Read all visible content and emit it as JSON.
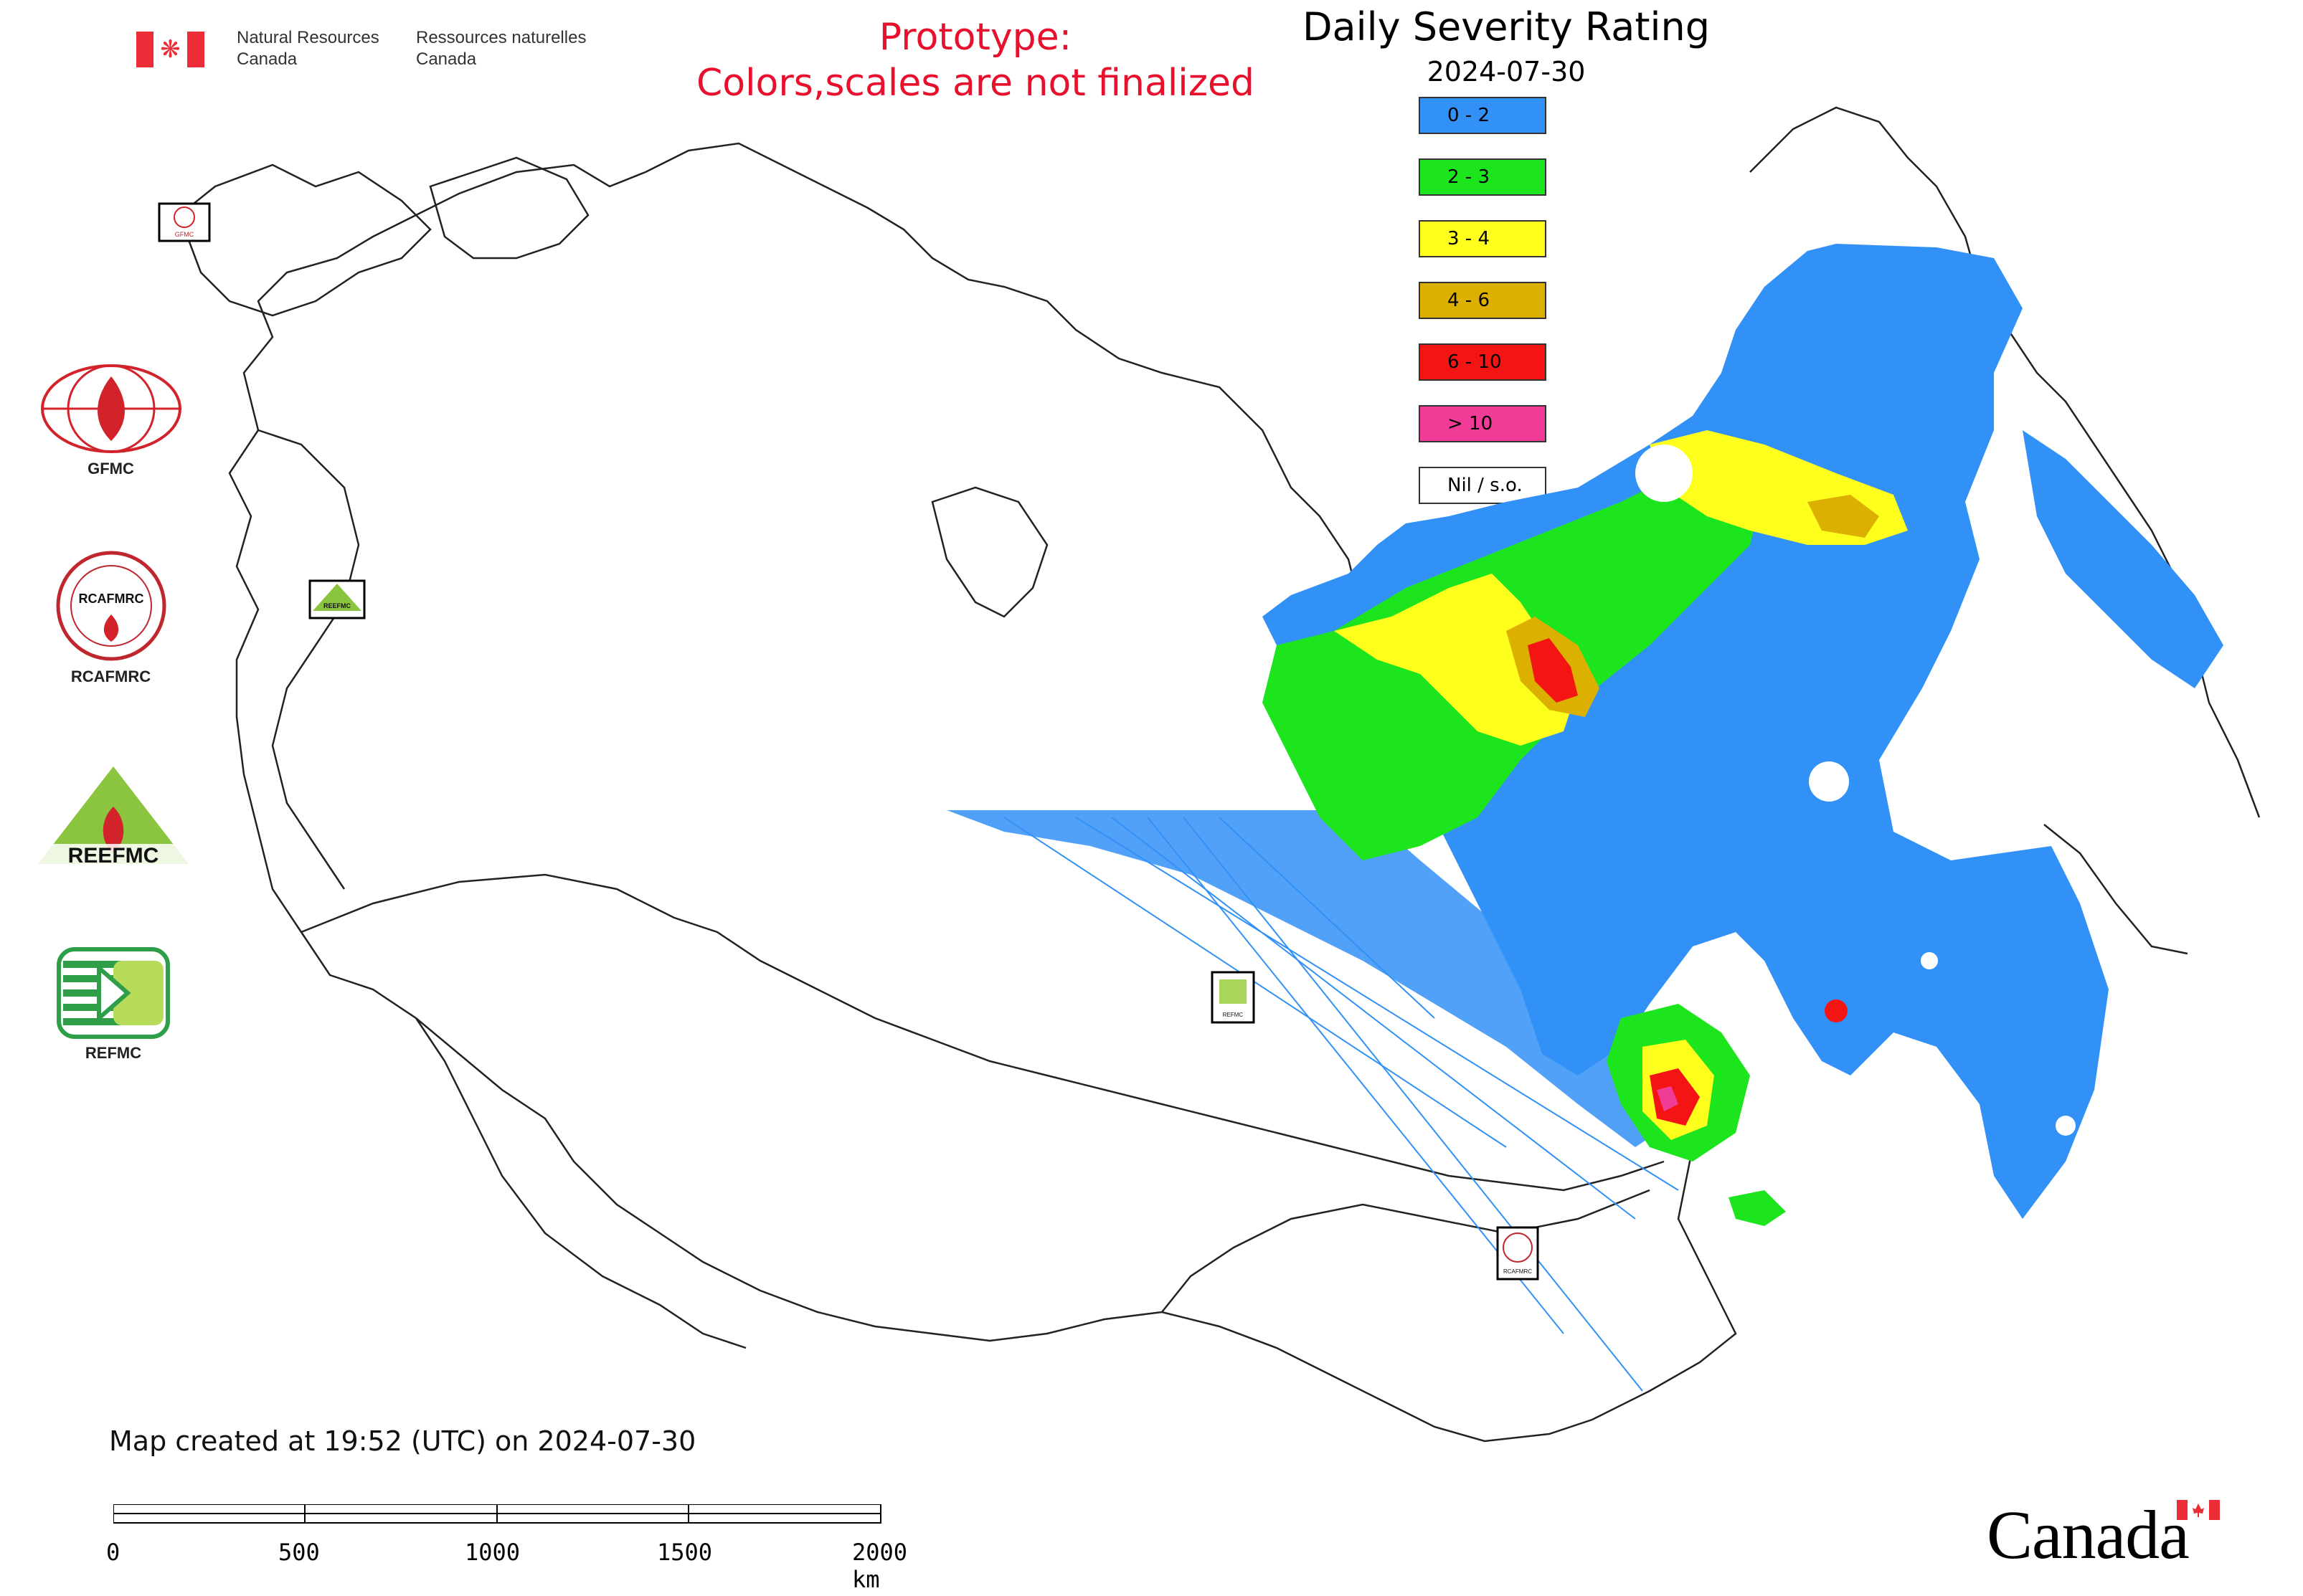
{
  "header": {
    "agency_en_line1": "Natural Resources",
    "agency_en_line2": "Canada",
    "agency_fr_line1": "Ressources naturelles",
    "agency_fr_line2": "Canada",
    "prototype_line1": "Prototype:",
    "prototype_line2": "Colors,scales are not finalized"
  },
  "map": {
    "title": "Daily Severity Rating",
    "date": "2024-07-30",
    "legend": [
      {
        "label": "0 - 2",
        "color": "#3291f7"
      },
      {
        "label": "2 - 3",
        "color": "#1de51d"
      },
      {
        "label": "3 - 4",
        "color": "#ffff1e"
      },
      {
        "label": "4 - 6",
        "color": "#dcb000"
      },
      {
        "label": "6 - 10",
        "color": "#f51414"
      },
      {
        "label": "> 10",
        "color": "#f03c96"
      },
      {
        "label": "Nil / s.o.",
        "color": "#ffffff"
      }
    ],
    "map_labels": {
      "gfmc_marker": "GFMC",
      "reefmc_marker": "REEFMC",
      "refmc_marker": "REFMC",
      "rcafmrc_marker": "RCAFMRC"
    }
  },
  "logos": {
    "gfmc": "GFMC",
    "rcafmrc": "RCAFMRC",
    "reefmc": "REEFMC",
    "refmc": "REFMC",
    "rcafmrc_badge_text": "RCAFMRC",
    "reefmc_badge_text": "REEFMC"
  },
  "footer": {
    "created": "Map created at 19:52 (UTC) on 2024-07-30",
    "scale_labels": [
      "0",
      "500",
      "1000",
      "1500",
      "2000 km"
    ],
    "wordmark": "Canada"
  }
}
